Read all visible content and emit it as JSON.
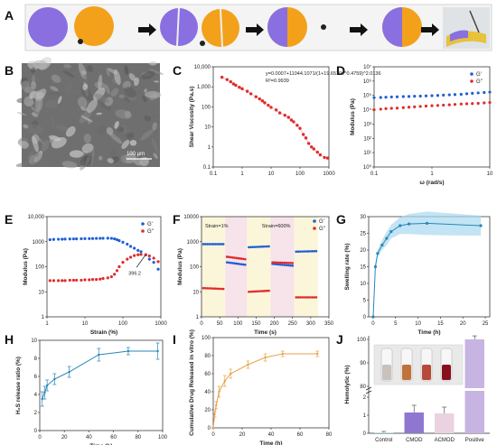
{
  "panel_labels": {
    "A": "A",
    "B": "B",
    "C": "C",
    "D": "D",
    "E": "E",
    "F": "F",
    "G": "G",
    "H": "H",
    "I": "I",
    "J": "J"
  },
  "sem": {
    "scale_text": "100 μm"
  },
  "colors": {
    "blue": "#1f5fd6",
    "red": "#e02b2b",
    "teal": "#2a86b8",
    "orange": "#e8a24a",
    "purple": "#8f77d1",
    "lilac": "#c7b4e2",
    "pink": "#ead2e0"
  },
  "chart_data": [
    {
      "id": "C",
      "type": "scatter",
      "ylabel": "Shear Viscosity (Pa.s)",
      "xlabel": "",
      "xscale": "log",
      "yscale": "log",
      "xlim": [
        0.1,
        1000
      ],
      "ylim": [
        0.1,
        10000
      ],
      "xticks": [
        "0.1",
        "1",
        "10",
        "100",
        "1000"
      ],
      "yticks": [
        "0.1",
        "1",
        "10",
        "100",
        "1,000",
        "10,000"
      ],
      "equation": "y=0.0007+11044.1071/(1+19.6510x^0.4759)^2.0136",
      "r2": "R²=0.9939",
      "x": [
        0.2,
        0.3,
        0.4,
        0.5,
        0.6,
        0.8,
        1,
        1.5,
        2,
        3,
        4,
        5,
        6,
        8,
        10,
        15,
        20,
        30,
        40,
        50,
        60,
        80,
        100,
        130,
        160,
        200,
        250,
        300,
        400,
        500,
        700,
        900
      ],
      "y": [
        3000,
        2300,
        1800,
        1400,
        1200,
        950,
        800,
        600,
        450,
        320,
        250,
        200,
        160,
        120,
        95,
        70,
        50,
        38,
        30,
        22,
        18,
        12,
        8.5,
        4.2,
        2.8,
        1.5,
        1.0,
        0.8,
        0.55,
        0.4,
        0.3,
        0.28
      ]
    },
    {
      "id": "D",
      "type": "scatter",
      "ylabel": "Modulus (Pa)",
      "xlabel": "ω (rad/s)",
      "xscale": "log",
      "yscale": "log",
      "xlim": [
        0.1,
        10
      ],
      "ylim": [
        1,
        10000000
      ],
      "xticks": [
        "0.1",
        "1",
        "10"
      ],
      "yticks": [
        "10⁰",
        "10¹",
        "10²",
        "10³",
        "10⁴",
        "10⁵",
        "10⁶",
        "10⁷"
      ],
      "series": [
        {
          "name": "G'",
          "color": "#1f5fd6",
          "x": [
            0.1,
            0.13,
            0.16,
            0.2,
            0.25,
            0.32,
            0.4,
            0.5,
            0.63,
            0.79,
            1,
            1.26,
            1.58,
            2,
            2.5,
            3.2,
            4,
            5,
            6.3,
            8,
            10
          ],
          "y": [
            70000,
            72000,
            75000,
            78000,
            80000,
            83000,
            85000,
            88000,
            90000,
            93000,
            96000,
            100000,
            105000,
            110000,
            115000,
            120000,
            130000,
            140000,
            150000,
            160000,
            170000
          ]
        },
        {
          "name": "G''",
          "color": "#e02b2b",
          "x": [
            0.1,
            0.13,
            0.16,
            0.2,
            0.25,
            0.32,
            0.4,
            0.5,
            0.63,
            0.79,
            1,
            1.26,
            1.58,
            2,
            2.5,
            3.2,
            4,
            5,
            6.3,
            8,
            10
          ],
          "y": [
            10000,
            11000,
            12000,
            12500,
            13000,
            14000,
            15000,
            16000,
            17000,
            18000,
            19000,
            20000,
            21000,
            22000,
            23500,
            25000,
            26000,
            27000,
            28000,
            30000,
            32000
          ]
        }
      ]
    },
    {
      "id": "E",
      "type": "scatter",
      "ylabel": "Modulus (Pa)",
      "xlabel": "Strain (%)",
      "xscale": "log",
      "yscale": "log",
      "xlim": [
        1,
        1000
      ],
      "ylim": [
        1,
        10000
      ],
      "xticks": [
        "1",
        "10",
        "100",
        "1000"
      ],
      "yticks": [
        "1",
        "10",
        "100",
        "1000",
        "10,000"
      ],
      "annotation": "396.2",
      "cross": [
        396.2,
        300
      ],
      "series": [
        {
          "name": "G'",
          "color": "#1f5fd6",
          "x": [
            1.2,
            1.5,
            2,
            2.5,
            3,
            4,
            5,
            6,
            8,
            10,
            13,
            16,
            20,
            25,
            30,
            40,
            50,
            60,
            70,
            80,
            100,
            130,
            160,
            200,
            250,
            300,
            400,
            500,
            650,
            850
          ],
          "y": [
            1200,
            1230,
            1250,
            1260,
            1270,
            1280,
            1290,
            1300,
            1310,
            1320,
            1330,
            1340,
            1350,
            1360,
            1370,
            1380,
            1360,
            1300,
            1200,
            1100,
            950,
            800,
            650,
            550,
            450,
            400,
            300,
            200,
            150,
            80
          ]
        },
        {
          "name": "G''",
          "color": "#e02b2b",
          "x": [
            1.2,
            1.5,
            2,
            2.5,
            3,
            4,
            5,
            6,
            8,
            10,
            13,
            16,
            20,
            25,
            30,
            40,
            50,
            60,
            70,
            80,
            100,
            130,
            160,
            200,
            250,
            300,
            400,
            500,
            650,
            850
          ],
          "y": [
            28,
            28,
            28,
            28,
            28,
            29,
            29,
            29,
            29,
            30,
            30,
            31,
            31,
            32,
            34,
            36,
            40,
            50,
            70,
            100,
            150,
            200,
            240,
            280,
            300,
            310,
            300,
            270,
            220,
            160
          ]
        }
      ]
    },
    {
      "id": "F",
      "type": "scatter",
      "ylabel": "Modulus (Pa)",
      "xlabel": "Time (s)",
      "xscale": "linear",
      "yscale": "log",
      "xlim": [
        0,
        350
      ],
      "ylim": [
        1,
        10000
      ],
      "xticks": [
        "0",
        "50",
        "100",
        "150",
        "200",
        "250",
        "300",
        "350"
      ],
      "yticks": [
        "1",
        "10",
        "100",
        "1000",
        "10000"
      ],
      "labels": [
        "Strain=1%",
        "Strain=600%"
      ],
      "bands": [
        {
          "from": 0,
          "to": 65,
          "kind": "low"
        },
        {
          "from": 65,
          "to": 125,
          "kind": "high"
        },
        {
          "from": 125,
          "to": 190,
          "kind": "low"
        },
        {
          "from": 190,
          "to": 255,
          "kind": "high"
        },
        {
          "from": 255,
          "to": 320,
          "kind": "low"
        }
      ],
      "series": [
        {
          "name": "G'",
          "color": "#1f5fd6",
          "segments": [
            {
              "x0": 5,
              "x1": 60,
              "y0": 800,
              "y1": 800
            },
            {
              "x0": 70,
              "x1": 120,
              "y0": 150,
              "y1": 120
            },
            {
              "x0": 130,
              "x1": 185,
              "y0": 600,
              "y1": 650
            },
            {
              "x0": 195,
              "x1": 250,
              "y0": 130,
              "y1": 110
            },
            {
              "x0": 260,
              "x1": 315,
              "y0": 400,
              "y1": 420
            }
          ]
        },
        {
          "name": "G''",
          "color": "#e02b2b",
          "segments": [
            {
              "x0": 5,
              "x1": 60,
              "y0": 14,
              "y1": 13
            },
            {
              "x0": 70,
              "x1": 120,
              "y0": 250,
              "y1": 200
            },
            {
              "x0": 130,
              "x1": 185,
              "y0": 10,
              "y1": 11
            },
            {
              "x0": 195,
              "x1": 250,
              "y0": 150,
              "y1": 140
            },
            {
              "x0": 260,
              "x1": 315,
              "y0": 6,
              "y1": 6
            }
          ]
        }
      ]
    },
    {
      "id": "G",
      "type": "line",
      "ylabel": "Swelling rate (%)",
      "xlabel": "Time (h)",
      "xlim": [
        -1,
        26
      ],
      "ylim": [
        0,
        30
      ],
      "xticks": [
        "0",
        "5",
        "10",
        "15",
        "20",
        "25"
      ],
      "yticks": [
        "0",
        "5",
        "10",
        "15",
        "20",
        "25",
        "30"
      ],
      "x": [
        0,
        0.5,
        1,
        2,
        3,
        4,
        6,
        8,
        12,
        24
      ],
      "y": [
        0,
        15,
        19,
        21.5,
        23.5,
        25.5,
        27.3,
        27.8,
        28,
        27.3
      ],
      "err": [
        0,
        1,
        1,
        1.5,
        2,
        2,
        2.5,
        3,
        3.5,
        3
      ]
    },
    {
      "id": "H",
      "type": "line",
      "ylabel": "H₂S release ratio (%)",
      "xlabel": "Time (h)",
      "xlim": [
        0,
        100
      ],
      "ylim": [
        0,
        10
      ],
      "xticks": [
        "0",
        "20",
        "40",
        "60",
        "80",
        "100"
      ],
      "yticks": [
        "0",
        "2",
        "4",
        "6",
        "8",
        "10"
      ],
      "x": [
        2,
        4,
        6,
        12,
        24,
        48,
        72,
        96
      ],
      "y": [
        3.5,
        4.2,
        5.0,
        5.7,
        6.5,
        8.4,
        8.8,
        8.8
      ],
      "err": [
        0.8,
        0.7,
        0.6,
        0.6,
        0.6,
        0.7,
        0.4,
        0.9
      ]
    },
    {
      "id": "I",
      "type": "line",
      "ylabel": "Cumulative Drug Released in vitro (%)",
      "xlabel": "Time (h)",
      "xlim": [
        0,
        80
      ],
      "ylim": [
        0,
        100
      ],
      "xticks": [
        "0",
        "20",
        "40",
        "60",
        "80"
      ],
      "yticks": [
        "0",
        "20",
        "40",
        "60",
        "80",
        "100"
      ],
      "x": [
        0,
        1,
        2,
        4,
        8,
        12,
        24,
        36,
        48,
        72
      ],
      "y": [
        0,
        15,
        25,
        40,
        52,
        60,
        70,
        78,
        82,
        82
      ],
      "err": [
        0,
        3,
        4,
        6,
        6,
        5,
        4,
        4,
        3,
        3
      ]
    },
    {
      "id": "J",
      "type": "bar",
      "ylabel": "Hemolytic (%)",
      "xlabel": "",
      "categories": [
        "Control",
        "CMOD",
        "ACMOD",
        "Positive"
      ],
      "values": [
        0.05,
        1.15,
        1.1,
        100
      ],
      "err": [
        0.05,
        0.4,
        0.35,
        1.5
      ],
      "colors": [
        "#bfe3ef",
        "#8f77d1",
        "#ead2e0",
        "#c7b4e2"
      ],
      "yticks_low": [
        "0",
        "1",
        "2"
      ],
      "yticks_high": [
        "80",
        "90",
        "100"
      ]
    }
  ]
}
